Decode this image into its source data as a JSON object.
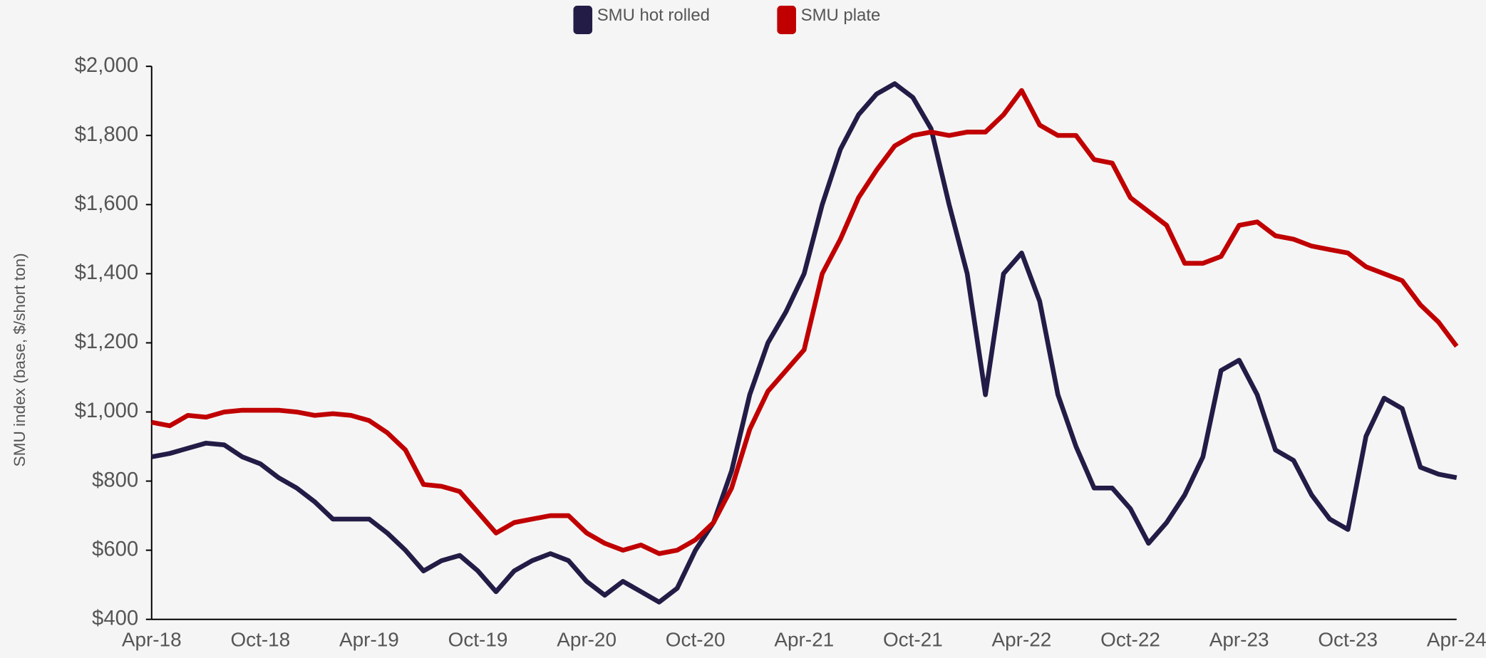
{
  "chart_data": {
    "type": "line",
    "y_label": "SMU index (base, $/short ton)",
    "categories": [
      "Apr-18",
      null,
      null,
      null,
      null,
      null,
      "Oct-18",
      null,
      null,
      null,
      null,
      null,
      "Apr-19",
      null,
      null,
      null,
      null,
      null,
      "Oct-19",
      null,
      null,
      null,
      null,
      null,
      "Apr-20",
      null,
      null,
      null,
      null,
      null,
      "Oct-20",
      null,
      null,
      null,
      null,
      null,
      "Apr-21",
      null,
      null,
      null,
      null,
      null,
      "Oct-21",
      null,
      null,
      null,
      null,
      null,
      "Apr-22",
      null,
      null,
      null,
      null,
      null,
      "Oct-22",
      null,
      null,
      null,
      null,
      null,
      "Apr-23",
      null,
      null,
      null,
      null,
      null,
      "Oct-23",
      null,
      null,
      null,
      null,
      null,
      "Apr-24"
    ],
    "series": [
      {
        "name": "SMU hot rolled",
        "color": "#231c46",
        "values": [
          870,
          880,
          895,
          910,
          905,
          870,
          850,
          810,
          780,
          740,
          690,
          690,
          690,
          650,
          600,
          540,
          570,
          585,
          540,
          480,
          540,
          570,
          590,
          570,
          510,
          470,
          510,
          480,
          450,
          490,
          600,
          680,
          830,
          1050,
          1200,
          1290,
          1400,
          1600,
          1760,
          1860,
          1920,
          1950,
          1910,
          1820,
          1600,
          1400,
          1050,
          1400,
          1460,
          1320,
          1050,
          900,
          780,
          780,
          720,
          620,
          680,
          760,
          870,
          1120,
          1150,
          1050,
          890,
          860,
          760,
          690,
          660,
          930,
          1040,
          1010,
          840,
          820,
          810
        ]
      },
      {
        "name": "SMU plate",
        "color": "#c00000",
        "values": [
          970,
          960,
          990,
          985,
          1000,
          1005,
          1005,
          1005,
          1000,
          990,
          995,
          990,
          975,
          940,
          890,
          790,
          785,
          770,
          710,
          650,
          680,
          690,
          700,
          700,
          650,
          620,
          600,
          615,
          590,
          600,
          630,
          680,
          780,
          950,
          1060,
          1120,
          1180,
          1400,
          1500,
          1620,
          1700,
          1770,
          1800,
          1810,
          1800,
          1810,
          1810,
          1860,
          1930,
          1830,
          1800,
          1800,
          1730,
          1720,
          1620,
          1580,
          1540,
          1430,
          1430,
          1450,
          1540,
          1550,
          1510,
          1500,
          1480,
          1470,
          1460,
          1420,
          1400,
          1380,
          1310,
          1260,
          1190
        ]
      }
    ],
    "ylim": [
      400,
      2000
    ],
    "yticks": [
      {
        "value": 400,
        "label": "$400"
      },
      {
        "value": 600,
        "label": "$600"
      },
      {
        "value": 800,
        "label": "$800"
      },
      {
        "value": 1000,
        "label": "$1,000"
      },
      {
        "value": 1200,
        "label": "$1,200"
      },
      {
        "value": 1400,
        "label": "$1,400"
      },
      {
        "value": 1600,
        "label": "$1,600"
      },
      {
        "value": 1800,
        "label": "$1,800"
      },
      {
        "value": 2000,
        "label": "$2,000"
      }
    ],
    "grid": false,
    "legend": "top"
  }
}
